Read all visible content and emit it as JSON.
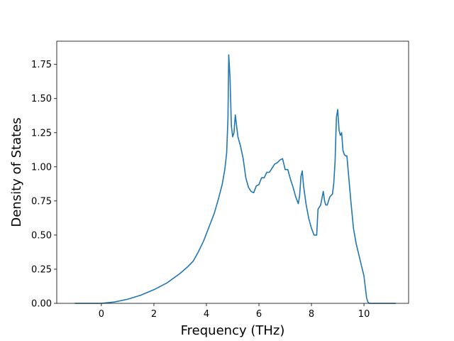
{
  "chart_data": {
    "type": "line",
    "title": "",
    "xlabel": "Frequency (THz)",
    "ylabel": "Density of States",
    "xlim": [
      -1.7,
      11.7
    ],
    "ylim": [
      0.0,
      1.92
    ],
    "x_ticks": [
      0,
      2,
      4,
      6,
      8,
      10
    ],
    "x_tick_labels": [
      "0",
      "2",
      "4",
      "6",
      "8",
      "10"
    ],
    "y_ticks": [
      0.0,
      0.25,
      0.5,
      0.75,
      1.0,
      1.25,
      1.5,
      1.75
    ],
    "y_tick_labels": [
      "0.00",
      "0.25",
      "0.50",
      "0.75",
      "1.00",
      "1.25",
      "1.50",
      "1.75"
    ],
    "grid": false,
    "legend": "none",
    "line_color": "#1f77b4",
    "series": [
      {
        "x": [
          -1.0,
          0.0,
          0.5,
          1.0,
          1.5,
          2.0,
          2.5,
          3.0,
          3.3,
          3.5,
          3.7,
          3.9,
          4.1,
          4.3,
          4.45,
          4.6,
          4.7,
          4.77,
          4.82,
          4.85,
          4.9,
          4.95,
          5.0,
          5.05,
          5.1,
          5.15,
          5.2,
          5.3,
          5.4,
          5.5,
          5.6,
          5.7,
          5.8,
          5.9,
          6.0,
          6.1,
          6.2,
          6.3,
          6.4,
          6.5,
          6.6,
          6.7,
          6.8,
          6.9,
          7.0,
          7.1,
          7.2,
          7.3,
          7.4,
          7.5,
          7.55,
          7.6,
          7.65,
          7.7,
          7.8,
          7.9,
          8.0,
          8.1,
          8.2,
          8.25,
          8.35,
          8.45,
          8.5,
          8.55,
          8.6,
          8.7,
          8.8,
          8.85,
          8.9,
          8.95,
          9.0,
          9.05,
          9.1,
          9.15,
          9.2,
          9.25,
          9.3,
          9.35,
          9.5,
          9.6,
          9.7,
          9.8,
          9.9,
          10.0,
          10.05,
          10.1,
          10.15,
          10.2,
          10.3,
          10.5,
          11.0,
          11.2
        ],
        "y": [
          0.0,
          0.0,
          0.01,
          0.03,
          0.06,
          0.1,
          0.15,
          0.22,
          0.27,
          0.31,
          0.38,
          0.46,
          0.56,
          0.66,
          0.76,
          0.87,
          0.98,
          1.1,
          1.35,
          1.82,
          1.65,
          1.3,
          1.22,
          1.25,
          1.38,
          1.3,
          1.22,
          1.15,
          1.06,
          0.92,
          0.85,
          0.82,
          0.81,
          0.86,
          0.87,
          0.92,
          0.92,
          0.96,
          0.96,
          0.99,
          1.02,
          1.03,
          1.05,
          1.06,
          0.98,
          0.98,
          0.91,
          0.85,
          0.78,
          0.73,
          0.79,
          0.93,
          0.97,
          0.86,
          0.72,
          0.62,
          0.55,
          0.5,
          0.5,
          0.69,
          0.72,
          0.82,
          0.75,
          0.72,
          0.72,
          0.78,
          0.8,
          0.88,
          1.04,
          1.36,
          1.42,
          1.27,
          1.23,
          1.25,
          1.12,
          1.09,
          1.08,
          1.08,
          0.75,
          0.55,
          0.44,
          0.36,
          0.28,
          0.2,
          0.12,
          0.04,
          0.01,
          0.0,
          0.0,
          0.0,
          0.0,
          0.0
        ]
      }
    ]
  }
}
